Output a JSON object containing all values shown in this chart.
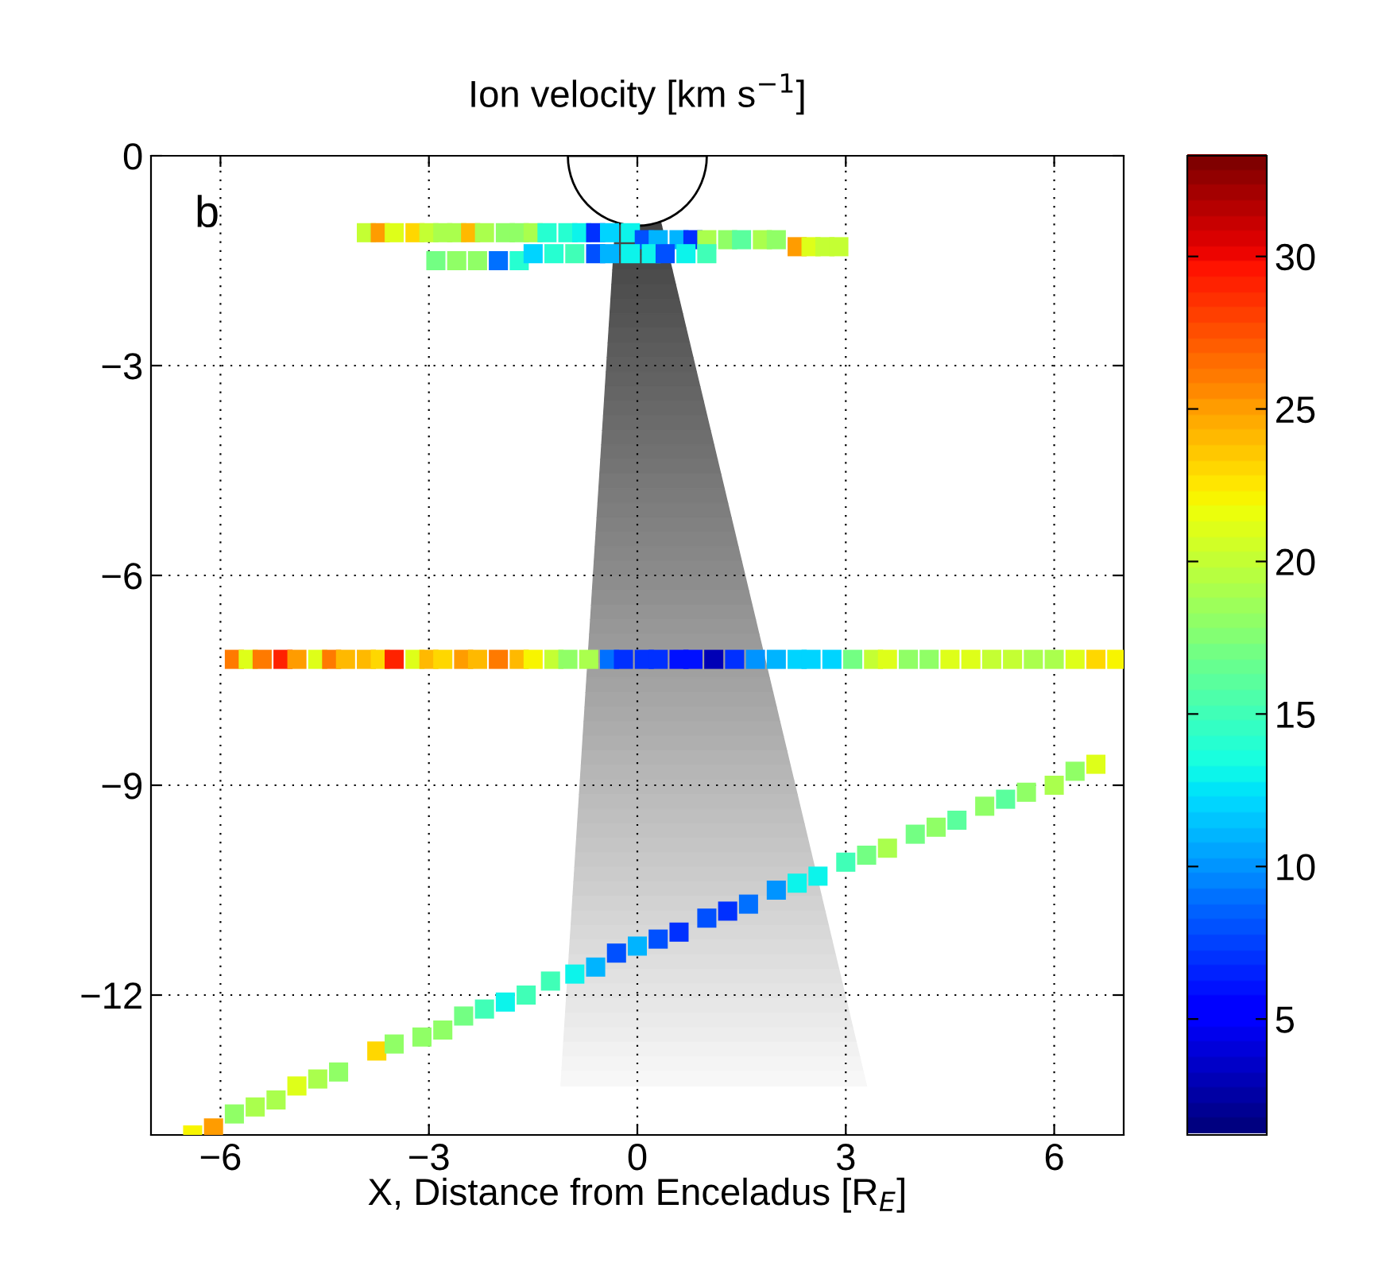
{
  "chart_data": {
    "type": "scatter",
    "title": "Ion velocity [km s$^{−1}$]",
    "xlabel": "X, Distance from Enceladus [R$_{E}$]",
    "clabel": null,
    "annotations": [
      "b"
    ],
    "xlim": [
      -7,
      7
    ],
    "ylim": [
      -14,
      0
    ],
    "xticks": [
      {
        "value": -6,
        "label": "−6"
      },
      {
        "value": -3,
        "label": "−3"
      },
      0,
      3,
      6
    ],
    "yticks": [
      0,
      {
        "value": -3,
        "label": "−3"
      },
      {
        "value": -6,
        "label": "−6"
      },
      {
        "value": -9,
        "label": "−9"
      },
      {
        "value": -12,
        "label": "−12"
      }
    ],
    "clim": [
      1.2,
      33.3
    ],
    "cticks": [
      5,
      10,
      15,
      20,
      25,
      30
    ],
    "grid": true,
    "marker": "square",
    "series": [
      {
        "x": [
          -3.9,
          -3.7,
          -3.5,
          -3.2,
          -3.0,
          -2.8,
          -2.6,
          -2.4,
          -2.2,
          -1.9,
          -1.7,
          -1.5,
          -1.3,
          -1.0,
          -0.8,
          -0.6,
          -0.4,
          -0.1,
          0.1,
          0.3,
          0.6,
          0.8,
          1.0,
          1.3,
          1.5,
          1.8,
          2.0,
          2.3,
          2.5,
          2.7,
          2.9,
          -2.9,
          -2.6,
          -2.3,
          -2.0,
          -1.7,
          -1.5,
          -1.2,
          -0.9,
          -0.6,
          -0.4,
          -0.1,
          0.2,
          0.4,
          0.7,
          1.0,
          -5.8,
          -5.6,
          -5.4,
          -5.1,
          -4.9,
          -4.6,
          -4.4,
          -4.2,
          -3.9,
          -3.7,
          -3.5,
          -3.2,
          -3.0,
          -2.8,
          -2.5,
          -2.3,
          -2.0,
          -1.7,
          -1.5,
          -1.2,
          -1.0,
          -0.7,
          -0.4,
          -0.2,
          0.1,
          0.3,
          0.6,
          0.8,
          1.1,
          1.4,
          1.7,
          2.0,
          2.3,
          2.5,
          2.8,
          3.1,
          3.4,
          3.6,
          3.9,
          4.2,
          4.5,
          4.8,
          5.1,
          5.4,
          5.7,
          6.0,
          6.3,
          6.6,
          6.9,
          -6.4,
          -6.1,
          -5.8,
          -5.5,
          -5.2,
          -4.9,
          -4.6,
          -4.3,
          -3.75,
          -3.5,
          -3.1,
          -2.8,
          -2.5,
          -2.2,
          -1.9,
          -1.6,
          -1.25,
          -0.9,
          -0.6,
          -0.3,
          0.0,
          0.3,
          0.6,
          1.0,
          1.3,
          1.6,
          2.0,
          2.3,
          2.6,
          3.0,
          3.3,
          3.6,
          4.0,
          4.3,
          4.6,
          5.0,
          5.3,
          5.6,
          6.0,
          6.3,
          6.6
        ],
        "values": [
          -1.1,
          -1.1,
          -1.1,
          -1.1,
          -1.1,
          -1.1,
          -1.1,
          -1.1,
          -1.1,
          -1.1,
          -1.1,
          -1.1,
          -1.1,
          -1.1,
          -1.1,
          -1.1,
          -1.1,
          -1.1,
          -1.2,
          -1.2,
          -1.2,
          -1.2,
          -1.2,
          -1.2,
          -1.2,
          -1.2,
          -1.2,
          -1.3,
          -1.3,
          -1.3,
          -1.3,
          -1.5,
          -1.5,
          -1.5,
          -1.5,
          -1.5,
          -1.4,
          -1.4,
          -1.4,
          -1.4,
          -1.4,
          -1.4,
          -1.4,
          -1.4,
          -1.4,
          -1.4,
          -7.2,
          -7.2,
          -7.2,
          -7.2,
          -7.2,
          -7.2,
          -7.2,
          -7.2,
          -7.2,
          -7.2,
          -7.2,
          -7.2,
          -7.2,
          -7.2,
          -7.2,
          -7.2,
          -7.2,
          -7.2,
          -7.2,
          -7.2,
          -7.2,
          -7.2,
          -7.2,
          -7.2,
          -7.2,
          -7.2,
          -7.2,
          -7.2,
          -7.2,
          -7.2,
          -7.2,
          -7.2,
          -7.2,
          -7.2,
          -7.2,
          -7.2,
          -7.2,
          -7.2,
          -7.2,
          -7.2,
          -7.2,
          -7.2,
          -7.2,
          -7.2,
          -7.2,
          -7.2,
          -7.2,
          -7.2,
          -7.2,
          -14.0,
          -13.9,
          -13.7,
          -13.6,
          -13.5,
          -13.3,
          -13.2,
          -13.1,
          -12.8,
          -12.7,
          -12.6,
          -12.5,
          -12.3,
          -12.2,
          -12.1,
          -12.0,
          -11.8,
          -11.7,
          -11.6,
          -11.4,
          -11.3,
          -11.2,
          -11.1,
          -10.9,
          -10.8,
          -10.7,
          -10.5,
          -10.4,
          -10.3,
          -10.1,
          -10.0,
          -9.9,
          -9.7,
          -9.6,
          -9.5,
          -9.3,
          -9.2,
          -9.1,
          -9.0,
          -8.8,
          -8.7
        ],
        "cvalues": [
          20,
          25,
          21,
          23,
          20,
          19,
          19,
          24,
          19,
          18,
          18,
          19,
          14,
          14,
          13,
          7,
          12,
          13,
          8,
          11,
          11,
          7,
          19,
          18,
          16,
          19,
          18,
          25,
          21,
          20,
          20,
          17,
          18,
          18,
          9,
          14,
          12,
          14,
          15,
          8,
          11,
          13,
          13,
          8,
          13,
          15,
          26,
          21,
          26,
          29,
          25,
          21,
          26,
          24,
          24,
          23,
          29,
          21,
          24,
          23,
          25,
          24,
          26,
          24,
          22,
          20,
          18,
          19,
          9,
          7,
          7,
          7,
          6,
          6,
          3,
          7,
          10,
          11,
          12,
          12,
          12,
          17,
          20,
          21,
          18,
          18,
          21,
          21,
          20,
          20,
          19,
          19,
          21,
          23,
          22,
          22,
          25,
          18,
          19,
          19,
          21,
          19,
          18,
          23,
          18,
          18,
          18,
          17,
          15,
          13,
          15,
          15,
          13,
          11,
          8,
          11,
          8,
          7,
          8,
          7,
          9,
          10,
          13,
          13,
          15,
          17,
          19,
          17,
          18,
          16,
          18,
          16,
          18,
          19,
          18,
          21
        ]
      }
    ]
  }
}
